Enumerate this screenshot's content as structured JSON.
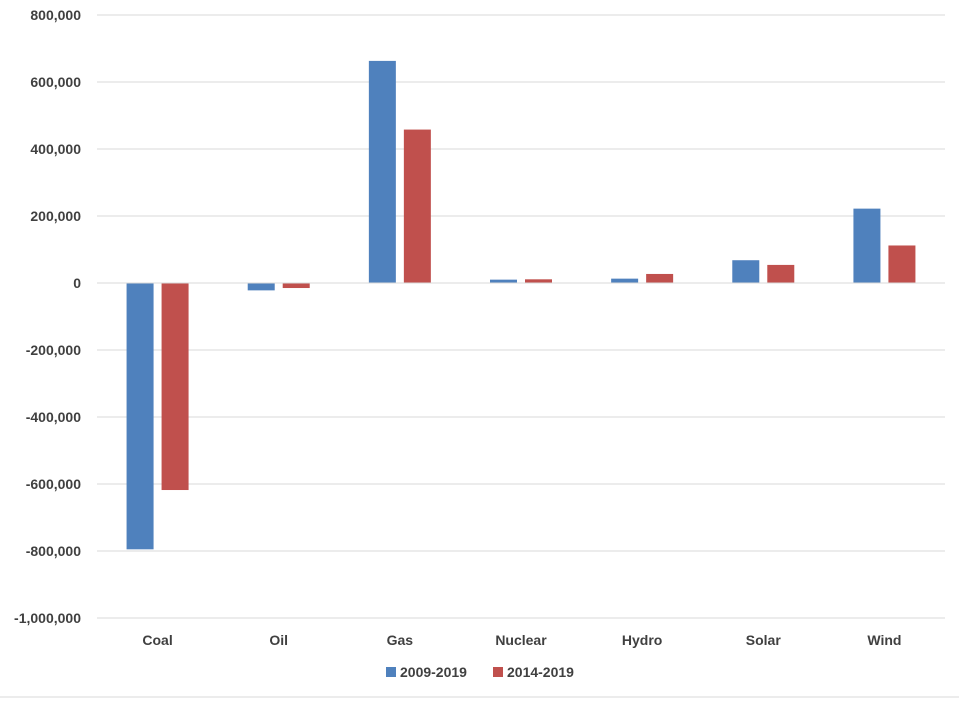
{
  "chart_data": {
    "type": "bar",
    "title": "",
    "xlabel": "",
    "ylabel": "",
    "categories": [
      "Coal",
      "Oil",
      "Gas",
      "Nuclear",
      "Hydro",
      "Solar",
      "Wind"
    ],
    "series": [
      {
        "name": "2009-2019",
        "color": "#4F81BD",
        "values": [
          -795000,
          -22000,
          663000,
          10000,
          13000,
          68000,
          222000
        ]
      },
      {
        "name": "2014-2019",
        "color": "#C0504D",
        "values": [
          -618000,
          -15000,
          458000,
          11000,
          27000,
          54000,
          112000
        ]
      }
    ],
    "ylim": [
      -1000000,
      800000
    ],
    "yticks": [
      800000,
      600000,
      400000,
      200000,
      0,
      -200000,
      -400000,
      -600000,
      -800000,
      -1000000
    ],
    "ytick_labels": [
      "800,000",
      "600,000",
      "400,000",
      "200,000",
      "0",
      "-200,000",
      "-400,000",
      "-600,000",
      "-800,000",
      "-1,000,000"
    ],
    "grid": true,
    "legend_position": "bottom"
  }
}
